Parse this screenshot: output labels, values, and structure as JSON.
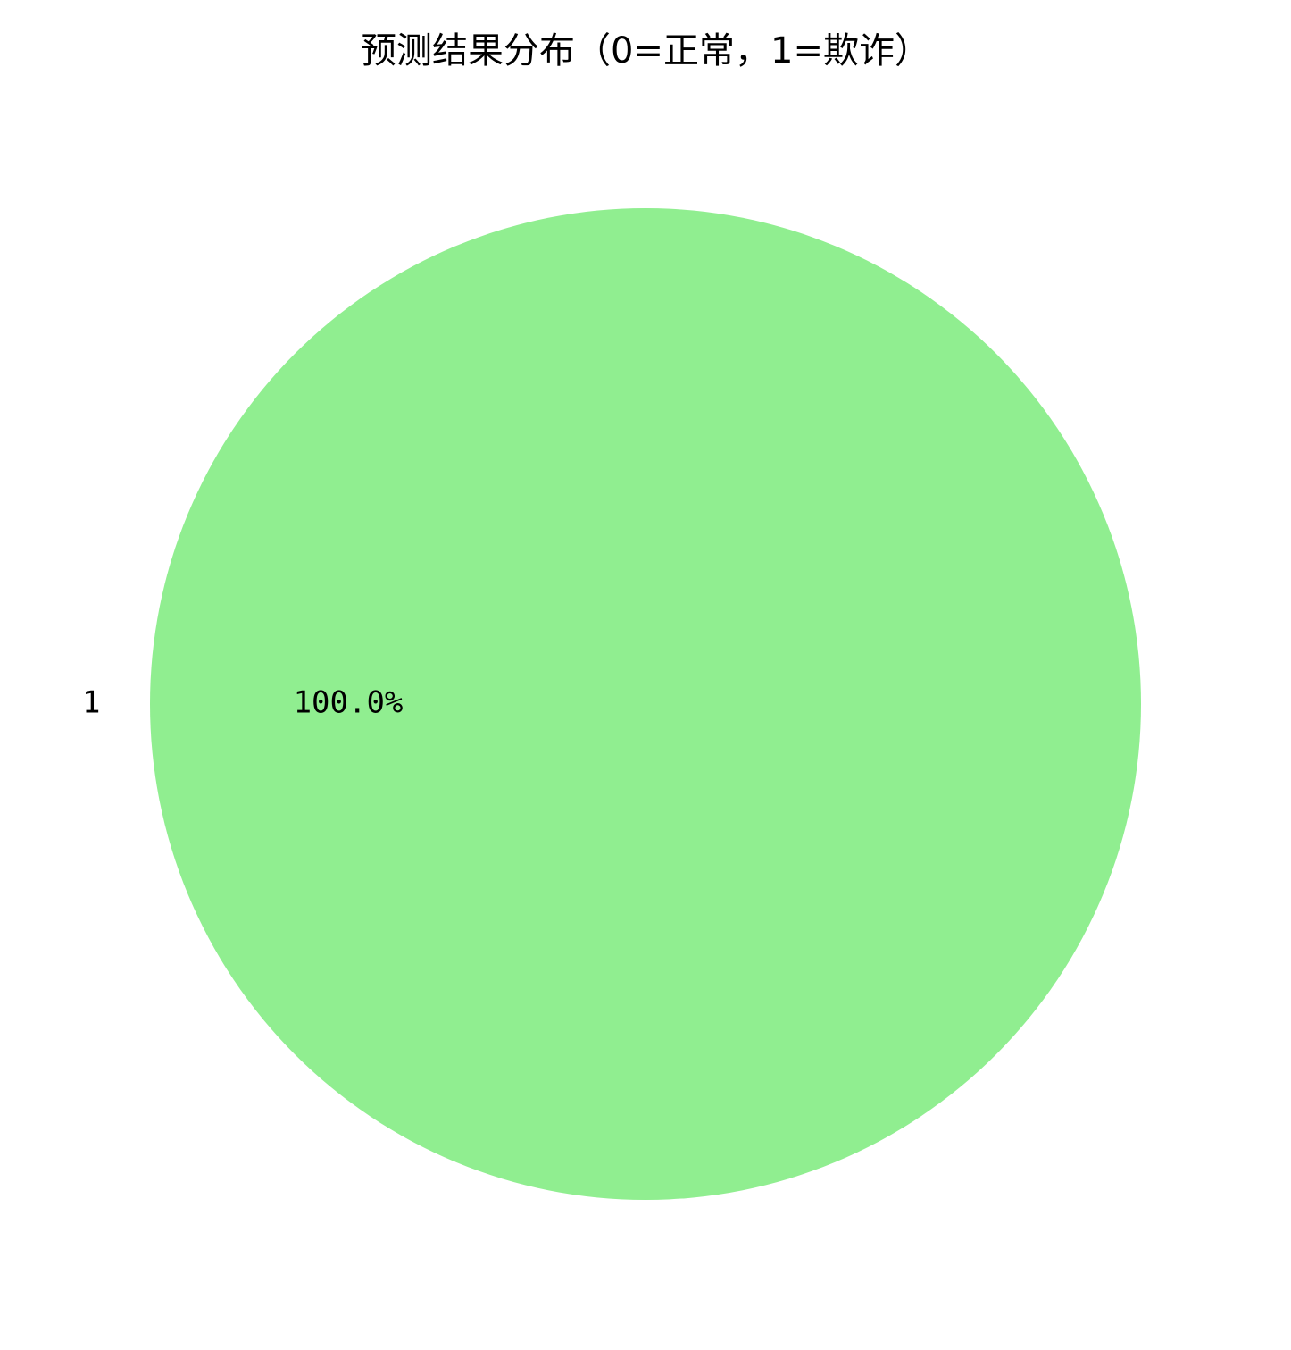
{
  "chart_data": {
    "type": "pie",
    "title": "预测结果分布（0=正常，1=欺诈）",
    "categories": [
      "1"
    ],
    "values": [
      100.0
    ],
    "percent_labels": [
      "100.0%"
    ],
    "colors": [
      "#90ee90"
    ],
    "legend": "none",
    "grid": false
  }
}
